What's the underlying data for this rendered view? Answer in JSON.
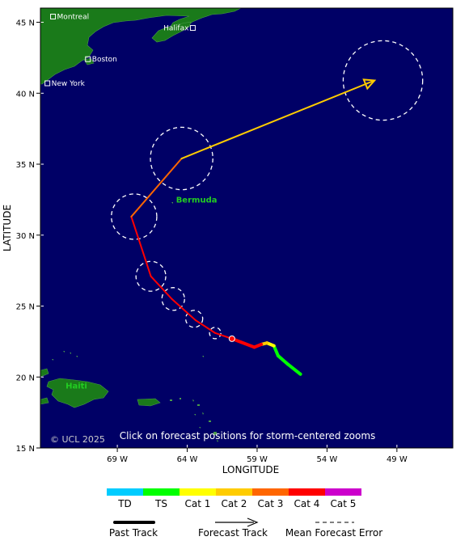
{
  "map": {
    "lat_ticks": [
      "45 N",
      "40 N",
      "35 N",
      "30 N",
      "25 N",
      "20 N",
      "15 N"
    ],
    "lon_ticks": [
      "69 W",
      "64 W",
      "59 W",
      "54 W",
      "49 W"
    ],
    "ylabel": "LATITUDE",
    "xlabel": "LONGITUDE",
    "copyright": "© UCL 2025",
    "hint": "Click on forecast positions for storm-centered zooms",
    "water_color": "#000066",
    "land_color": "#1a7a1a",
    "cities": [
      {
        "name": "Montreal",
        "lat": 45.4,
        "lon": -73.6
      },
      {
        "name": "Halifax",
        "lat": 44.6,
        "lon": -63.6
      },
      {
        "name": "Boston",
        "lat": 42.4,
        "lon": -71.1
      },
      {
        "name": "New York",
        "lat": 40.7,
        "lon": -74.0
      }
    ],
    "labels": [
      {
        "name": "Bermuda",
        "lat": 32.3,
        "lon": -64.8,
        "color": "#22cc22"
      },
      {
        "name": "Haiti",
        "lat": 19.2,
        "lon": -72.7,
        "color": "#22cc22"
      }
    ]
  },
  "chart_data": {
    "type": "map",
    "past_track": [
      {
        "lat": 20.2,
        "lon": -55.9,
        "category": "TS"
      },
      {
        "lat": 20.9,
        "lon": -56.8,
        "category": "TS"
      },
      {
        "lat": 21.5,
        "lon": -57.5,
        "category": "TS"
      },
      {
        "lat": 22.2,
        "lon": -57.8,
        "category": "TS"
      },
      {
        "lat": 22.4,
        "lon": -58.3,
        "category": "Cat 1"
      },
      {
        "lat": 22.3,
        "lon": -58.7,
        "category": "Cat 2"
      },
      {
        "lat": 22.1,
        "lon": -59.2,
        "category": "Cat 4"
      },
      {
        "lat": 22.7,
        "lon": -60.8,
        "category": "Cat 4"
      }
    ],
    "forecast_track": [
      {
        "lat": 22.7,
        "lon": -60.8,
        "category": "Cat 4"
      },
      {
        "lat": 23.1,
        "lon": -62.0,
        "category": "Cat 4"
      },
      {
        "lat": 24.0,
        "lon": -63.4,
        "category": "Cat 4"
      },
      {
        "lat": 25.5,
        "lon": -65.1,
        "category": "Cat 4"
      },
      {
        "lat": 27.1,
        "lon": -66.6,
        "category": "Cat 4"
      },
      {
        "lat": 31.3,
        "lon": -68.0,
        "category": "Cat 4"
      },
      {
        "lat": 35.4,
        "lon": -64.4,
        "category": "Cat 3"
      },
      {
        "lat": 40.9,
        "lon": -50.6,
        "category": "Cat 2"
      }
    ],
    "error_cone": [
      {
        "lat": 23.1,
        "lon": -62.0,
        "radius_deg": 0.4
      },
      {
        "lat": 24.1,
        "lon": -63.5,
        "radius_deg": 0.6
      },
      {
        "lat": 25.5,
        "lon": -65.0,
        "radius_deg": 0.8
      },
      {
        "lat": 27.1,
        "lon": -66.6,
        "radius_deg": 1.05
      },
      {
        "lat": 31.3,
        "lon": -67.8,
        "radius_deg": 1.6
      },
      {
        "lat": 35.4,
        "lon": -64.4,
        "radius_deg": 2.2
      },
      {
        "lat": 40.9,
        "lon": -50.0,
        "radius_deg": 2.8
      }
    ],
    "xlim": [
      -74.5,
      -45.0
    ],
    "ylim": [
      15,
      46
    ]
  },
  "legend": {
    "categories": [
      {
        "label": "TD",
        "color": "#00ccff"
      },
      {
        "label": "TS",
        "color": "#00ff00"
      },
      {
        "label": "Cat 1",
        "color": "#ffff00"
      },
      {
        "label": "Cat 2",
        "color": "#ffcc00"
      },
      {
        "label": "Cat 3",
        "color": "#ff6600"
      },
      {
        "label": "Cat 4",
        "color": "#ff0000"
      },
      {
        "label": "Cat 5",
        "color": "#cc00cc"
      }
    ],
    "past_track": "Past Track",
    "forecast_track": "Forecast Track",
    "mean_error": "Mean Forecast Error"
  }
}
